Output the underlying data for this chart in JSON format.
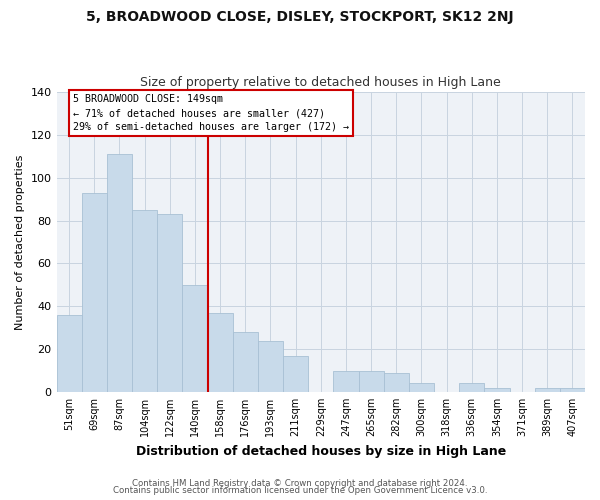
{
  "title": "5, BROADWOOD CLOSE, DISLEY, STOCKPORT, SK12 2NJ",
  "subtitle": "Size of property relative to detached houses in High Lane",
  "xlabel": "Distribution of detached houses by size in High Lane",
  "ylabel": "Number of detached properties",
  "bar_color": "#c8daea",
  "bar_edge_color": "#a8c0d4",
  "categories": [
    "51sqm",
    "69sqm",
    "87sqm",
    "104sqm",
    "122sqm",
    "140sqm",
    "158sqm",
    "176sqm",
    "193sqm",
    "211sqm",
    "229sqm",
    "247sqm",
    "265sqm",
    "282sqm",
    "300sqm",
    "318sqm",
    "336sqm",
    "354sqm",
    "371sqm",
    "389sqm",
    "407sqm"
  ],
  "values": [
    36,
    93,
    111,
    85,
    83,
    50,
    37,
    28,
    24,
    17,
    0,
    10,
    10,
    9,
    4,
    0,
    4,
    2,
    0,
    2,
    2
  ],
  "ylim": [
    0,
    140
  ],
  "yticks": [
    0,
    20,
    40,
    60,
    80,
    100,
    120,
    140
  ],
  "vline_x": 5.5,
  "vline_color": "#cc0000",
  "annotation_text": "5 BROADWOOD CLOSE: 149sqm\n← 71% of detached houses are smaller (427)\n29% of semi-detached houses are larger (172) →",
  "annotation_box_color": "#ffffff",
  "annotation_box_edgecolor": "#cc0000",
  "footer_line1": "Contains HM Land Registry data © Crown copyright and database right 2024.",
  "footer_line2": "Contains public sector information licensed under the Open Government Licence v3.0.",
  "background_color": "#ffffff",
  "plot_background_color": "#eef2f7",
  "grid_color": "#c8d4e0"
}
